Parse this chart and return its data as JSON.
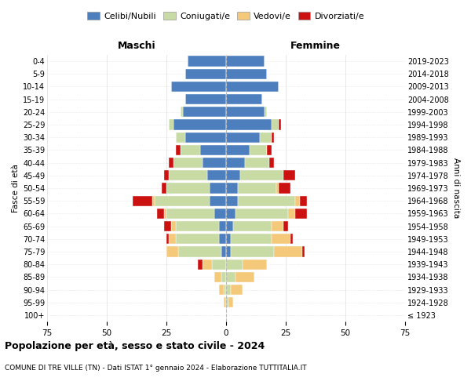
{
  "age_groups": [
    "100+",
    "95-99",
    "90-94",
    "85-89",
    "80-84",
    "75-79",
    "70-74",
    "65-69",
    "60-64",
    "55-59",
    "50-54",
    "45-49",
    "40-44",
    "35-39",
    "30-34",
    "25-29",
    "20-24",
    "15-19",
    "10-14",
    "5-9",
    "0-4"
  ],
  "birth_years": [
    "≤ 1923",
    "1924-1928",
    "1929-1933",
    "1934-1938",
    "1939-1943",
    "1944-1948",
    "1949-1953",
    "1954-1958",
    "1959-1963",
    "1964-1968",
    "1969-1973",
    "1974-1978",
    "1979-1983",
    "1984-1988",
    "1989-1993",
    "1994-1998",
    "1999-2003",
    "2004-2008",
    "2009-2013",
    "2014-2018",
    "2019-2023"
  ],
  "colors": {
    "celibi": "#4d7fbe",
    "coniugati": "#c8dba4",
    "vedovi": "#f5c97a",
    "divorziati": "#cc1111"
  },
  "males": {
    "celibi": [
      0,
      0,
      0,
      0,
      0,
      2,
      3,
      3,
      5,
      7,
      7,
      8,
      10,
      11,
      17,
      22,
      18,
      17,
      23,
      17,
      16
    ],
    "coniugati": [
      0,
      0,
      1,
      2,
      6,
      18,
      18,
      18,
      20,
      23,
      18,
      16,
      12,
      8,
      4,
      2,
      1,
      0,
      0,
      0,
      0
    ],
    "vedovi": [
      0,
      1,
      2,
      3,
      4,
      5,
      3,
      2,
      1,
      1,
      0,
      0,
      0,
      0,
      0,
      0,
      0,
      0,
      0,
      0,
      0
    ],
    "divorziati": [
      0,
      0,
      0,
      0,
      2,
      0,
      1,
      3,
      3,
      8,
      2,
      2,
      2,
      2,
      0,
      0,
      0,
      0,
      0,
      0,
      0
    ]
  },
  "females": {
    "nubili": [
      0,
      0,
      0,
      0,
      0,
      2,
      2,
      3,
      4,
      5,
      5,
      6,
      8,
      10,
      14,
      19,
      16,
      15,
      22,
      17,
      16
    ],
    "coniugate": [
      0,
      1,
      2,
      4,
      7,
      18,
      17,
      16,
      22,
      24,
      16,
      18,
      10,
      7,
      5,
      3,
      1,
      0,
      0,
      0,
      0
    ],
    "vedove": [
      0,
      2,
      5,
      8,
      10,
      12,
      8,
      5,
      3,
      2,
      1,
      0,
      0,
      0,
      0,
      0,
      0,
      0,
      0,
      0,
      0
    ],
    "divorziate": [
      0,
      0,
      0,
      0,
      0,
      1,
      1,
      2,
      5,
      3,
      5,
      5,
      2,
      2,
      1,
      1,
      0,
      0,
      0,
      0,
      0
    ]
  },
  "title": "Popolazione per età, sesso e stato civile - 2024",
  "subtitle": "COMUNE DI TRE VILLE (TN) - Dati ISTAT 1° gennaio 2024 - Elaborazione TUTTITALIA.IT",
  "xlabel_left": "Maschi",
  "xlabel_right": "Femmine",
  "ylabel_left": "Fasce di età",
  "ylabel_right": "Anni di nascita",
  "xlim": 75,
  "legend_labels": [
    "Celibi/Nubili",
    "Coniugati/e",
    "Vedovi/e",
    "Divorziati/e"
  ],
  "background_color": "#ffffff"
}
